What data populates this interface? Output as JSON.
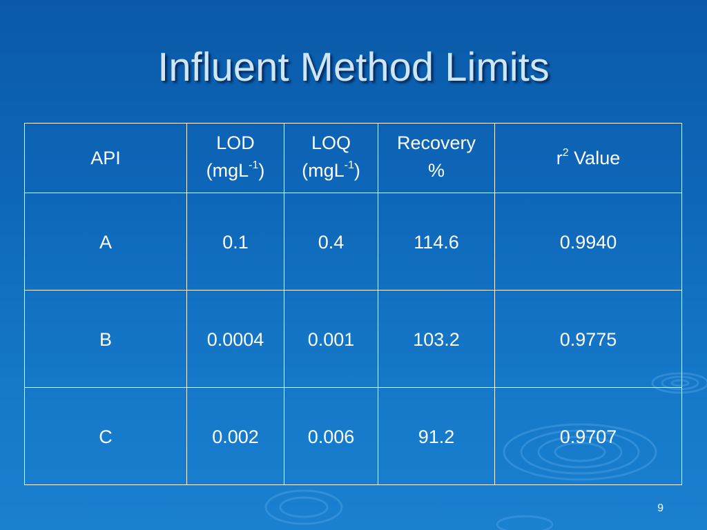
{
  "title": "Influent Method Limits",
  "table": {
    "headers": {
      "api": "API",
      "lod_line1": "LOD",
      "lod_unit_base": "(mgL",
      "lod_unit_exp": "-1",
      "lod_unit_close": ")",
      "loq_line1": "LOQ",
      "loq_unit_base": "(mgL",
      "loq_unit_exp": "-1",
      "loq_unit_close": ")",
      "recovery_line1": "Recovery",
      "recovery_line2": "%",
      "r2_base": "r",
      "r2_exp": "2",
      "r2_rest": " Value"
    },
    "rows": [
      {
        "api": "A",
        "lod": "0.1",
        "loq": "0.4",
        "recovery": "114.6",
        "r2": "0.9940"
      },
      {
        "api": "B",
        "lod": "0.0004",
        "loq": "0.001",
        "recovery": "103.2",
        "r2": "0.9775"
      },
      {
        "api": "C",
        "lod": "0.002",
        "loq": "0.006",
        "recovery": "91.2",
        "r2": "0.9707"
      }
    ]
  },
  "page_number": "9"
}
